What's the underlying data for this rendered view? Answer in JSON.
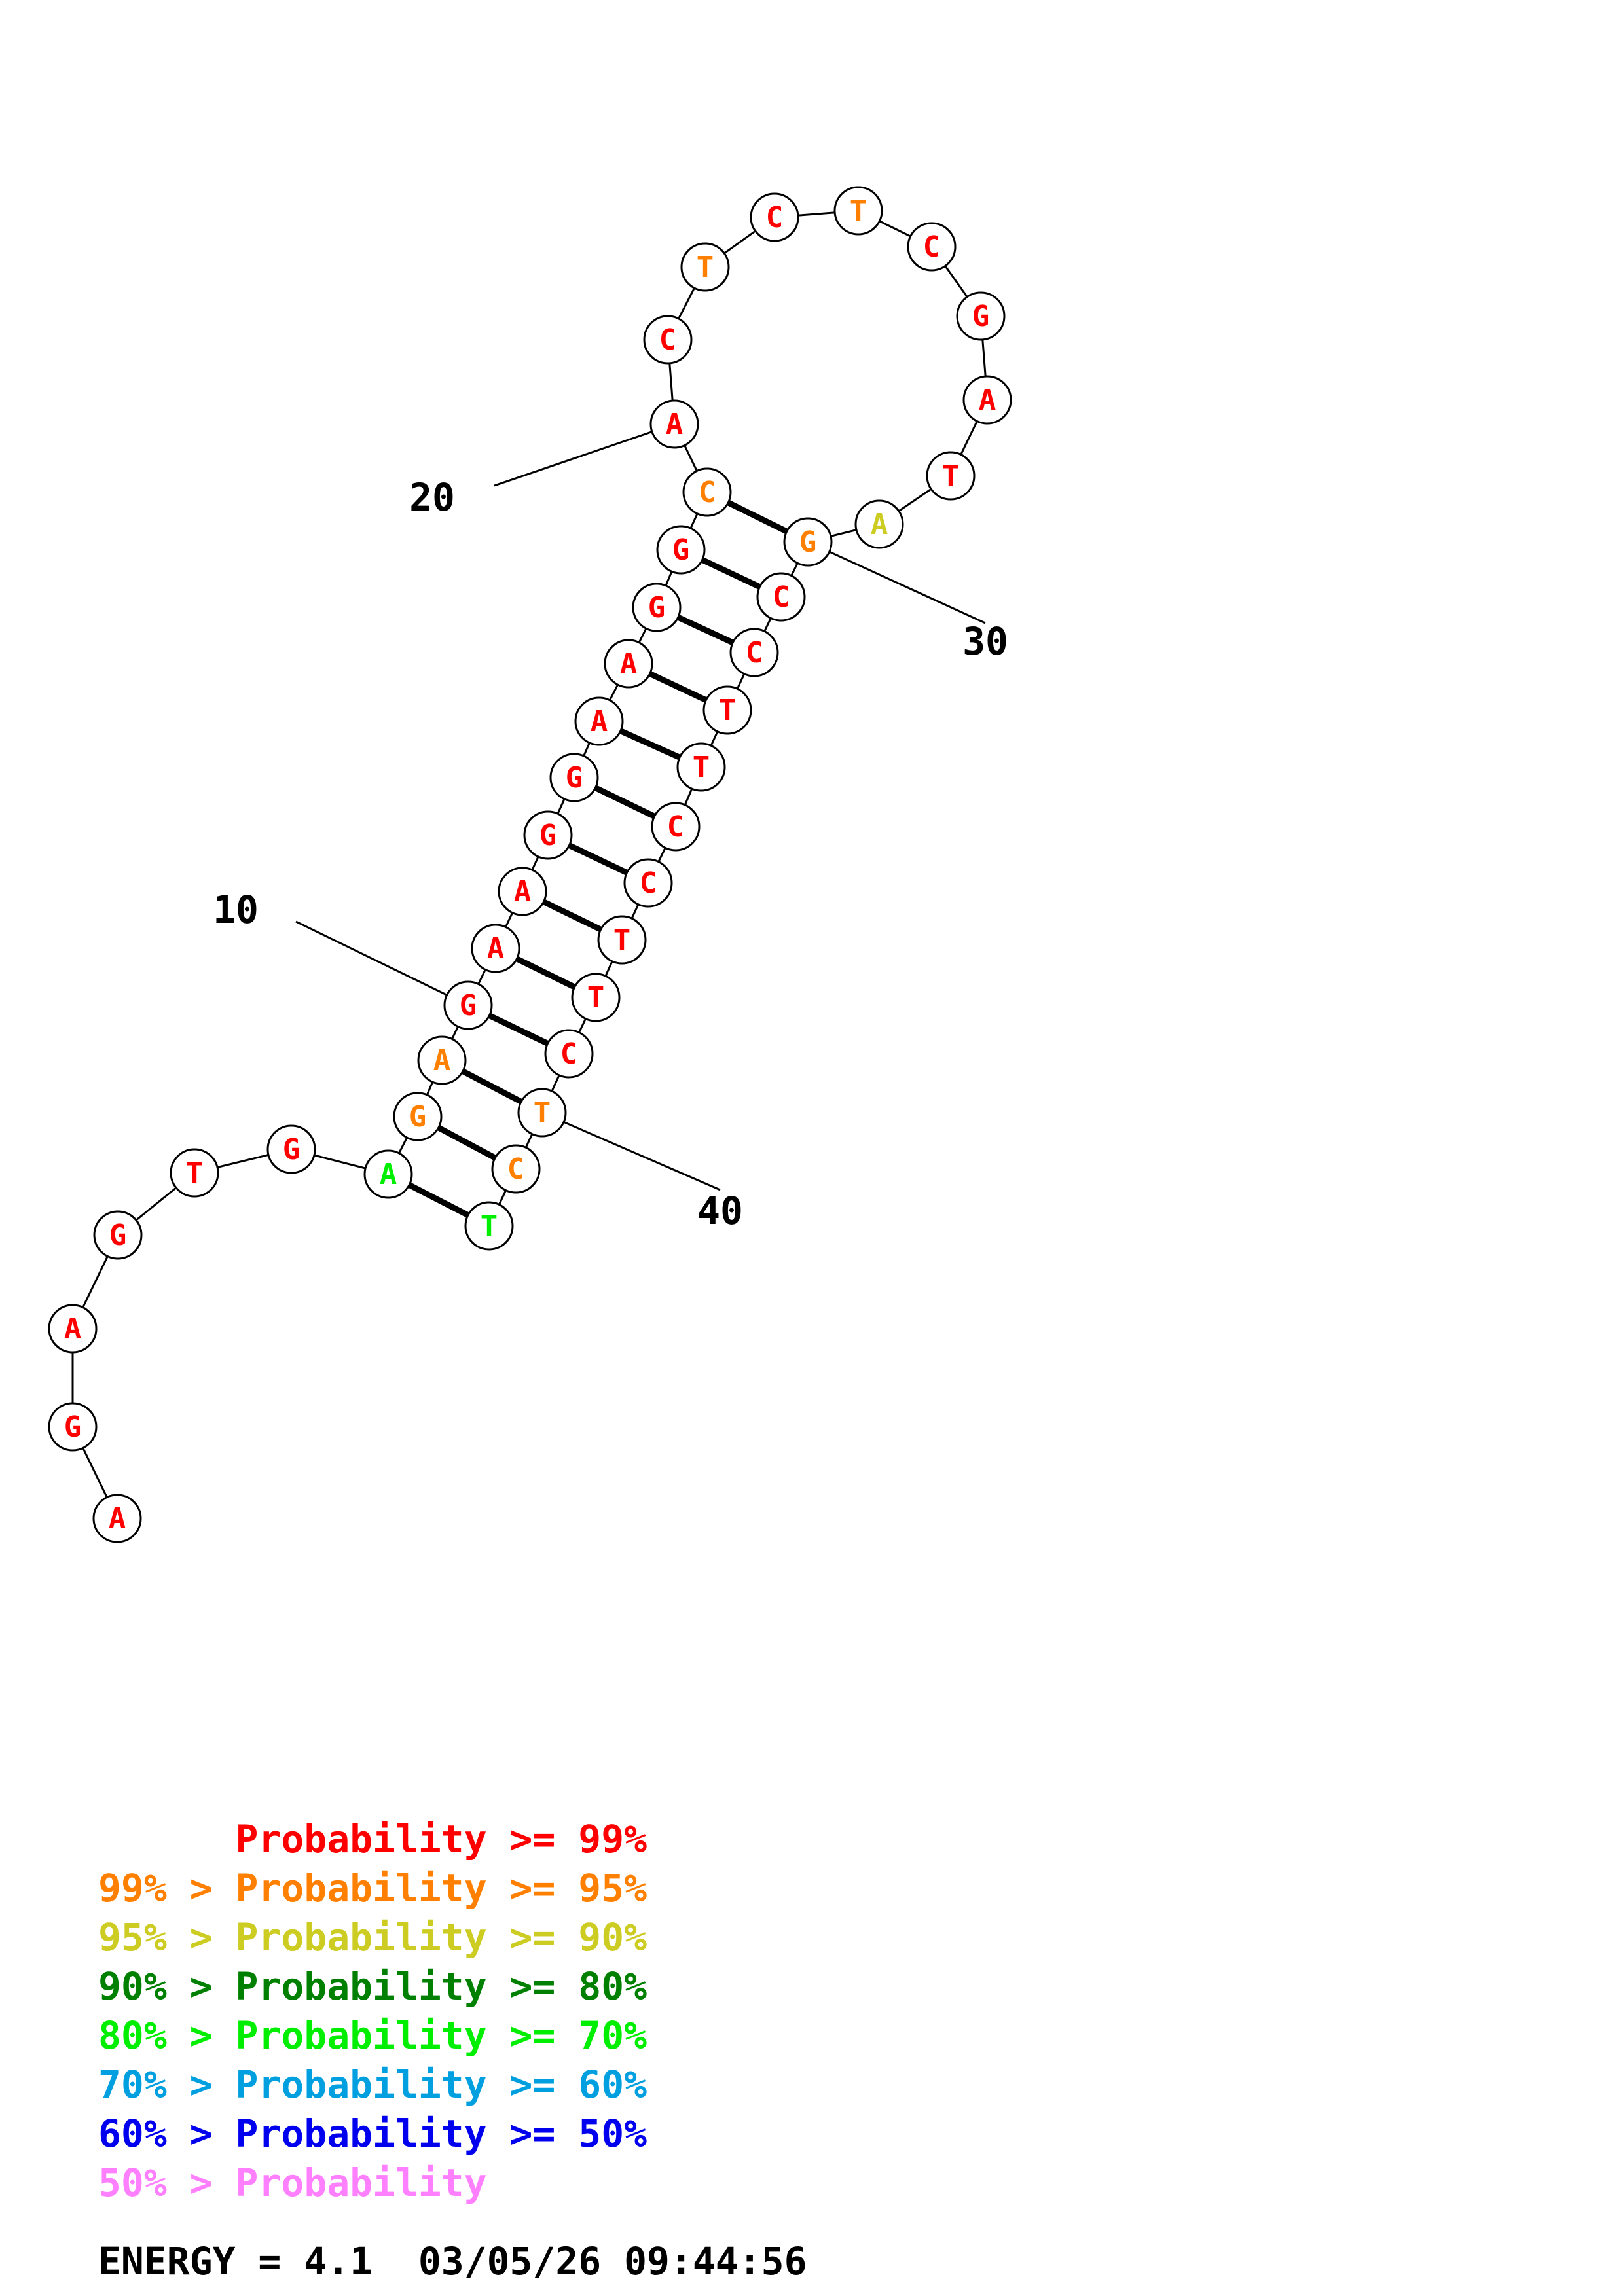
{
  "sequence": [
    "A",
    "G",
    "A",
    "G",
    "T",
    "G",
    "A",
    "G",
    "A",
    "G",
    "A",
    "A",
    "G",
    "G",
    "A",
    "A",
    "G",
    "G",
    "C",
    "A",
    "C",
    "T",
    "C",
    "T",
    "C",
    "G",
    "A",
    "T",
    "A",
    "G",
    "C",
    "C",
    "T",
    "T",
    "C",
    "C",
    "T",
    "T",
    "C",
    "T",
    "C",
    "T"
  ],
  "nucleotides": [
    {
      "index": 1,
      "base": "A",
      "prob": "p99"
    },
    {
      "index": 2,
      "base": "G",
      "prob": "p99"
    },
    {
      "index": 3,
      "base": "A",
      "prob": "p99"
    },
    {
      "index": 4,
      "base": "G",
      "prob": "p99"
    },
    {
      "index": 5,
      "base": "T",
      "prob": "p99"
    },
    {
      "index": 6,
      "base": "G",
      "prob": "p99"
    },
    {
      "index": 7,
      "base": "A",
      "prob": "p70"
    },
    {
      "index": 8,
      "base": "G",
      "prob": "p95"
    },
    {
      "index": 9,
      "base": "A",
      "prob": "p95"
    },
    {
      "index": 10,
      "base": "G",
      "prob": "p99"
    },
    {
      "index": 11,
      "base": "A",
      "prob": "p99"
    },
    {
      "index": 12,
      "base": "A",
      "prob": "p99"
    },
    {
      "index": 13,
      "base": "G",
      "prob": "p99"
    },
    {
      "index": 14,
      "base": "G",
      "prob": "p99"
    },
    {
      "index": 15,
      "base": "A",
      "prob": "p99"
    },
    {
      "index": 16,
      "base": "A",
      "prob": "p99"
    },
    {
      "index": 17,
      "base": "G",
      "prob": "p99"
    },
    {
      "index": 18,
      "base": "G",
      "prob": "p99"
    },
    {
      "index": 19,
      "base": "C",
      "prob": "p95"
    },
    {
      "index": 20,
      "base": "A",
      "prob": "p99"
    },
    {
      "index": 21,
      "base": "C",
      "prob": "p99"
    },
    {
      "index": 22,
      "base": "T",
      "prob": "p95"
    },
    {
      "index": 23,
      "base": "C",
      "prob": "p99"
    },
    {
      "index": 24,
      "base": "T",
      "prob": "p95"
    },
    {
      "index": 25,
      "base": "C",
      "prob": "p99"
    },
    {
      "index": 26,
      "base": "G",
      "prob": "p99"
    },
    {
      "index": 27,
      "base": "A",
      "prob": "p99"
    },
    {
      "index": 28,
      "base": "T",
      "prob": "p99"
    },
    {
      "index": 29,
      "base": "A",
      "prob": "p90"
    },
    {
      "index": 30,
      "base": "G",
      "prob": "p95"
    },
    {
      "index": 31,
      "base": "C",
      "prob": "p99"
    },
    {
      "index": 32,
      "base": "C",
      "prob": "p99"
    },
    {
      "index": 33,
      "base": "T",
      "prob": "p99"
    },
    {
      "index": 34,
      "base": "T",
      "prob": "p99"
    },
    {
      "index": 35,
      "base": "C",
      "prob": "p99"
    },
    {
      "index": 36,
      "base": "C",
      "prob": "p99"
    },
    {
      "index": 37,
      "base": "T",
      "prob": "p99"
    },
    {
      "index": 38,
      "base": "T",
      "prob": "p99"
    },
    {
      "index": 39,
      "base": "C",
      "prob": "p99"
    },
    {
      "index": 40,
      "base": "T",
      "prob": "p95"
    },
    {
      "index": 41,
      "base": "C",
      "prob": "p95"
    },
    {
      "index": 42,
      "base": "T",
      "prob": "p70"
    }
  ],
  "pairs": [
    [
      7,
      42
    ],
    [
      8,
      41
    ],
    [
      9,
      40
    ],
    [
      10,
      39
    ],
    [
      11,
      38
    ],
    [
      12,
      37
    ],
    [
      13,
      36
    ],
    [
      14,
      35
    ],
    [
      15,
      34
    ],
    [
      16,
      33
    ],
    [
      17,
      32
    ],
    [
      18,
      31
    ],
    [
      19,
      30
    ]
  ],
  "position_labels": [
    {
      "index": 10,
      "text": "10"
    },
    {
      "index": 20,
      "text": "20"
    },
    {
      "index": 30,
      "text": "30"
    },
    {
      "index": 40,
      "text": "40"
    }
  ],
  "colors": {
    "p99": "#ff0000",
    "p95": "#ff8000",
    "p90": "#cccc22",
    "p80": "#008000",
    "p70": "#00ee00",
    "p60": "#00a0e0",
    "p50": "#0000ee",
    "plow": "#ff80ff"
  },
  "legend": [
    {
      "prob": "p99",
      "text": "      Probability >= 99%"
    },
    {
      "prob": "p95",
      "text": "99% > Probability >= 95%"
    },
    {
      "prob": "p90",
      "text": "95% > Probability >= 90%"
    },
    {
      "prob": "p80",
      "text": "90% > Probability >= 80%"
    },
    {
      "prob": "p70",
      "text": "80% > Probability >= 70%"
    },
    {
      "prob": "p60",
      "text": "70% > Probability >= 60%"
    },
    {
      "prob": "p50",
      "text": "60% > Probability >= 50%"
    },
    {
      "prob": "plow",
      "text": "50% > Probability"
    }
  ],
  "footer": {
    "energy": "ENERGY = 4.1",
    "timestamp": "03/05/26 09:44:56"
  }
}
